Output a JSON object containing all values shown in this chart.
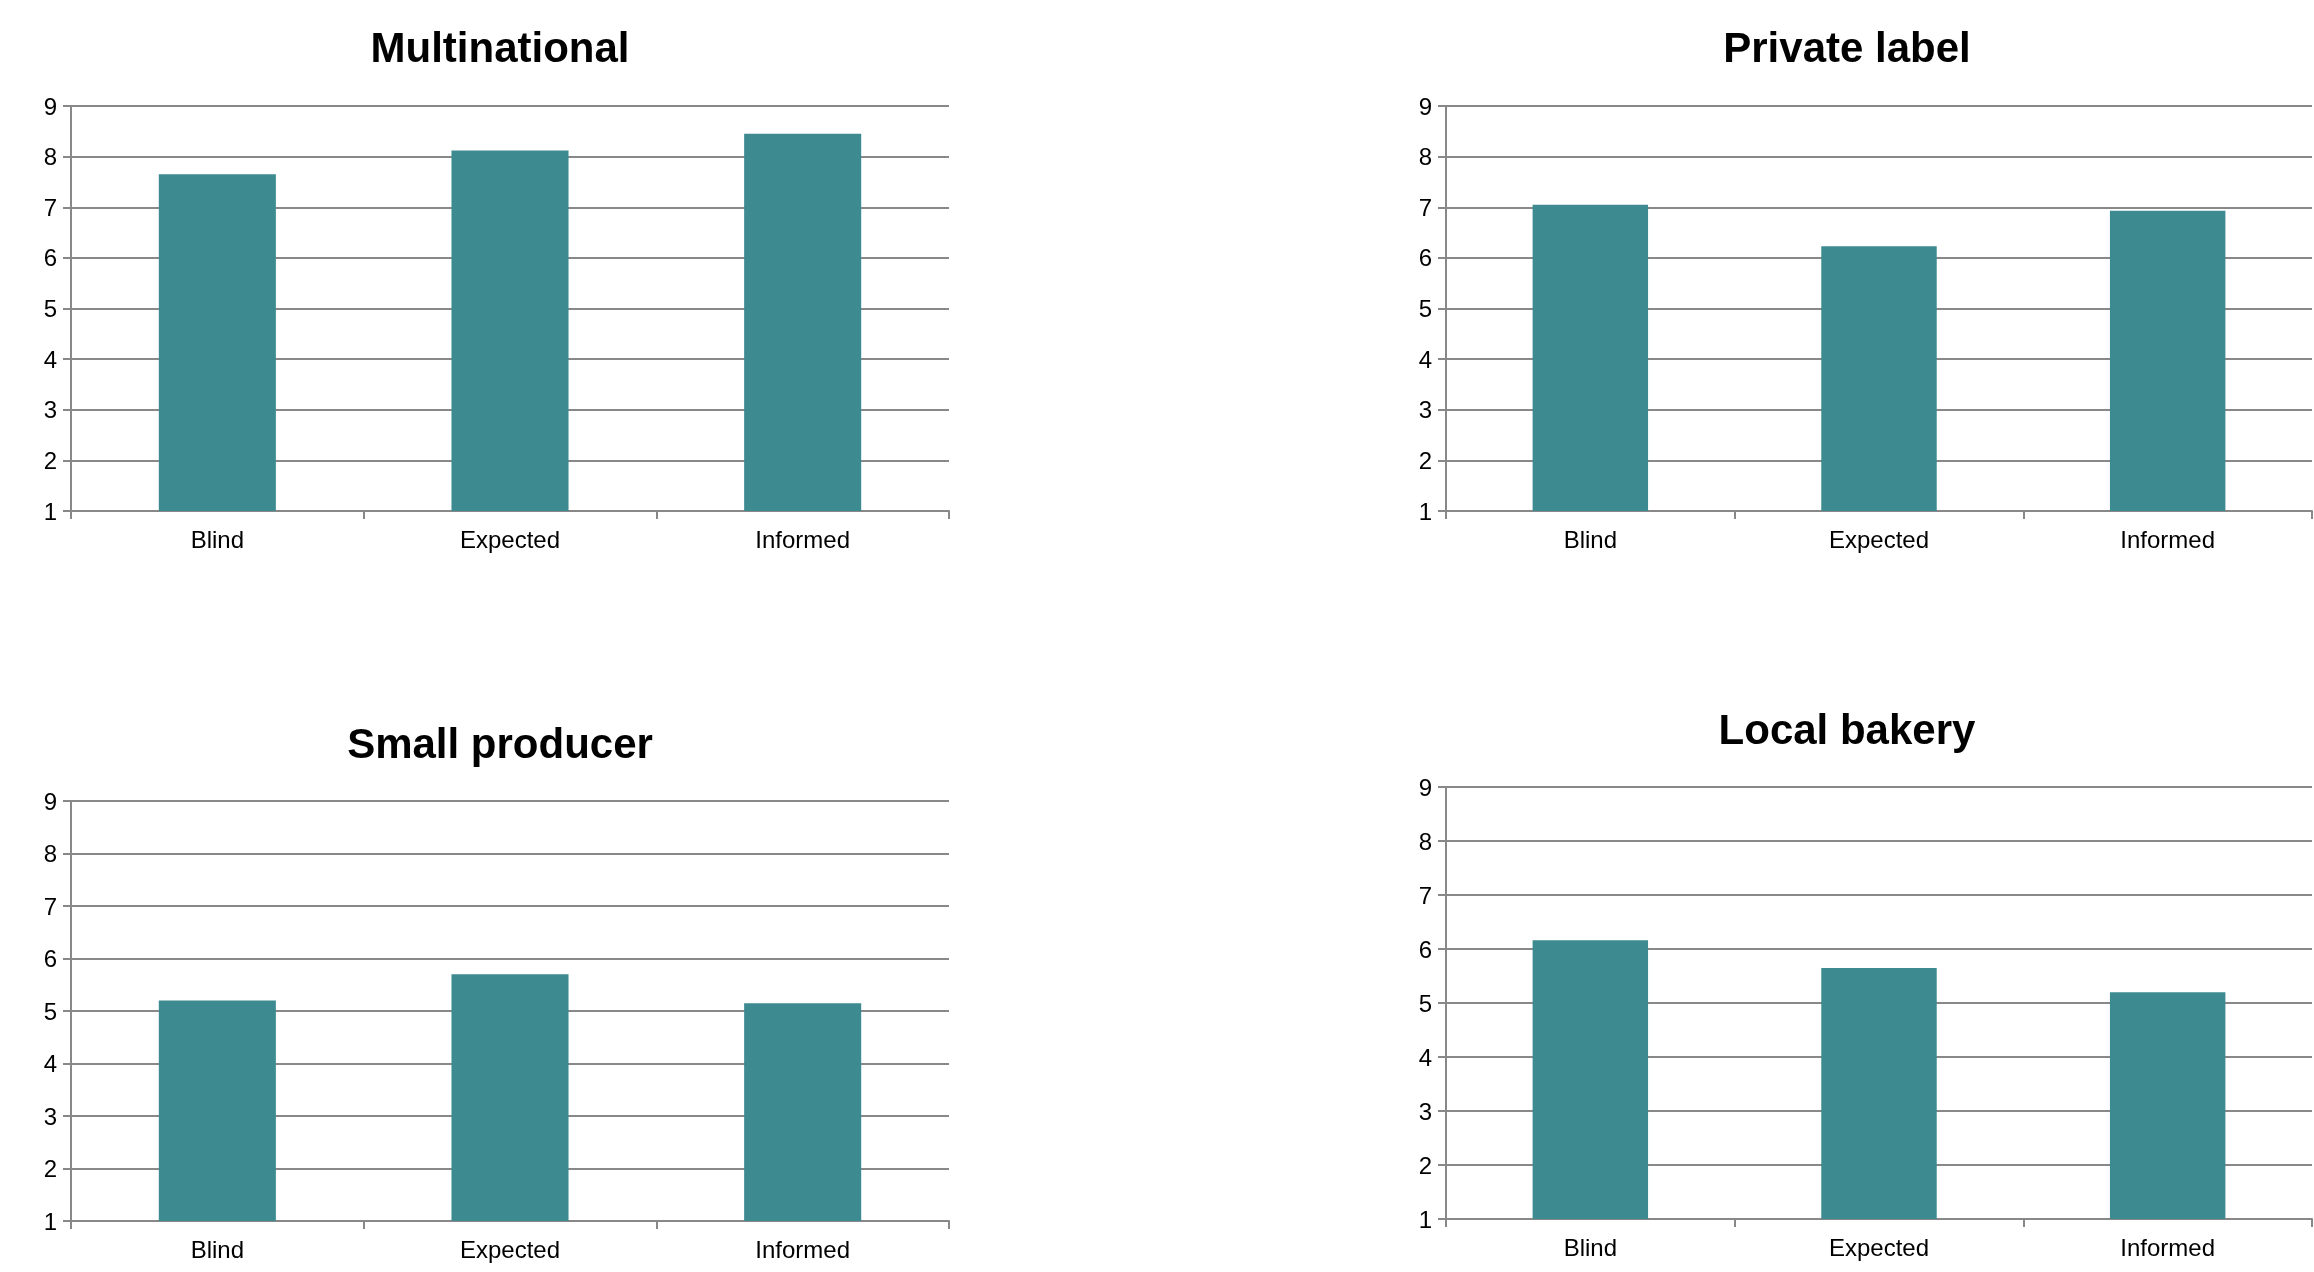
{
  "chart_data": [
    {
      "type": "bar",
      "title": "Multinational",
      "categories": [
        "Blind",
        "Expected",
        "Informed"
      ],
      "values": [
        7.65,
        8.12,
        8.45
      ],
      "color": "#3d8b91",
      "ylim": [
        1,
        9
      ],
      "yticks": [
        1,
        2,
        3,
        4,
        5,
        6,
        7,
        8,
        9
      ],
      "grid": "y"
    },
    {
      "type": "bar",
      "title": "Private label",
      "categories": [
        "Blind",
        "Expected",
        "Informed"
      ],
      "values": [
        7.05,
        6.23,
        6.93
      ],
      "color": "#3d8b91",
      "ylim": [
        1,
        9
      ],
      "yticks": [
        1,
        2,
        3,
        4,
        5,
        6,
        7,
        8,
        9
      ],
      "grid": "y"
    },
    {
      "type": "bar",
      "title": "Small producer",
      "categories": [
        "Blind",
        "Expected",
        "Informed"
      ],
      "values": [
        5.2,
        5.7,
        5.15
      ],
      "color": "#3d8b91",
      "ylim": [
        1,
        9
      ],
      "yticks": [
        1,
        2,
        3,
        4,
        5,
        6,
        7,
        8,
        9
      ],
      "grid": "y"
    },
    {
      "type": "bar",
      "title": "Local bakery",
      "categories": [
        "Blind",
        "Expected",
        "Informed"
      ],
      "values": [
        6.16,
        5.65,
        5.2
      ],
      "color": "#3d8b91",
      "ylim": [
        1,
        9
      ],
      "yticks": [
        1,
        2,
        3,
        4,
        5,
        6,
        7,
        8,
        9
      ],
      "grid": "y"
    }
  ]
}
